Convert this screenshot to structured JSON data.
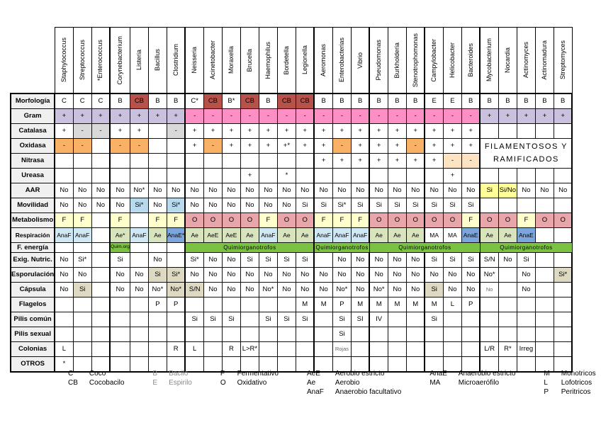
{
  "table": {
    "columns": [
      "Staphylococcus",
      "Streptococcus",
      "*Enterococcus",
      "Corynebacterium",
      "Listeria",
      "Bacillus",
      "Clostridium",
      "Neisseria",
      "Acinetobacter",
      "Moraxella",
      "Brucella",
      "Haemophilus",
      "Bordetella",
      "Legionella",
      "Aeromonas",
      "Enterobacterias",
      "Vibrio",
      "Pseudomonas",
      "Burkholderia",
      "Stenotrophomonas",
      "Campylobacter",
      "Helicobacter",
      "Bacteroides",
      "Mycobacterium",
      "Nocardia",
      "Actinomyces",
      "Actinomadura",
      "Streptomyces"
    ],
    "rows": [
      {
        "label": "Morfología",
        "cells": [
          "C",
          "C",
          "C",
          "B",
          {
            "v": "CB",
            "k": "brick"
          },
          "B",
          "B",
          "C*",
          {
            "v": "CB",
            "k": "brick"
          },
          "B*",
          {
            "v": "CB",
            "k": "brick"
          },
          "B",
          {
            "v": "CB",
            "k": "brick"
          },
          {
            "v": "CB",
            "k": "brick"
          },
          "B",
          "B",
          "B",
          "B",
          "B",
          "B",
          "E",
          "E",
          "B",
          "B",
          "B",
          "B",
          "B",
          "B"
        ]
      },
      {
        "label": "Gram",
        "cells": [
          {
            "v": "+",
            "k": "purple"
          },
          {
            "v": "+",
            "k": "purple"
          },
          {
            "v": "+",
            "k": "purple"
          },
          {
            "v": "+",
            "k": "purple"
          },
          {
            "v": "+",
            "k": "purple"
          },
          {
            "v": "+",
            "k": "purple"
          },
          {
            "v": "+",
            "k": "purple"
          },
          {
            "v": "-",
            "k": "pink"
          },
          {
            "v": "-",
            "k": "pink"
          },
          {
            "v": "-",
            "k": "pink"
          },
          {
            "v": "-",
            "k": "pink"
          },
          {
            "v": "-",
            "k": "pink"
          },
          {
            "v": "-",
            "k": "pink"
          },
          {
            "v": "-",
            "k": "pink"
          },
          {
            "v": "-",
            "k": "pink"
          },
          {
            "v": "-",
            "k": "pink"
          },
          {
            "v": "-",
            "k": "pink"
          },
          {
            "v": "-",
            "k": "pink"
          },
          {
            "v": "-",
            "k": "pink"
          },
          {
            "v": "-",
            "k": "pink"
          },
          {
            "v": "-",
            "k": "pink"
          },
          {
            "v": "-",
            "k": "pink"
          },
          {
            "v": "-",
            "k": "pink"
          },
          {
            "v": "+",
            "k": "purple"
          },
          {
            "v": "+",
            "k": "purple"
          },
          {
            "v": "+",
            "k": "purple"
          },
          {
            "v": "+",
            "k": "purple"
          },
          {
            "v": "+",
            "k": "purple"
          }
        ]
      },
      {
        "label": "Catalasa",
        "cells": [
          "+",
          {
            "v": "-",
            "k": "gray"
          },
          {
            "v": "-",
            "k": "gray"
          },
          "+",
          "+",
          "",
          {
            "v": "-",
            "k": "gray"
          },
          "+",
          "+",
          "+",
          "+",
          "+",
          "+",
          "+",
          "+",
          "+",
          "+",
          "+",
          "+",
          "+",
          "+",
          "+",
          "+",
          "",
          "",
          "",
          "",
          ""
        ]
      },
      {
        "label": "Oxidasa",
        "cells": [
          {
            "v": "-",
            "k": "orange"
          },
          {
            "v": "-",
            "k": "orange"
          },
          "",
          {
            "v": "-",
            "k": "orange"
          },
          {
            "v": "-",
            "k": "orange"
          },
          "",
          "",
          "+",
          {
            "v": "-",
            "k": "orange"
          },
          "+",
          "+",
          "+",
          "+*",
          "+",
          "+",
          {
            "v": "-",
            "k": "orange"
          },
          "+",
          "+",
          "+",
          {
            "v": "-",
            "k": "orange"
          },
          "+",
          "+",
          "+",
          {
            "v": "FILAMENTOSOS Y RAMIFICADOS",
            "k": "fil",
            "cs": 5,
            "rs": 2
          }
        ]
      },
      {
        "label": "Nitrasa",
        "cells": [
          "",
          "",
          "",
          "",
          "",
          "",
          "",
          "",
          "",
          "",
          "",
          "",
          "",
          "",
          "+",
          "+",
          "+",
          "+",
          "+",
          "+",
          "+",
          {
            "v": "-",
            "k": "lorange"
          },
          {
            "v": "-",
            "k": "lorange"
          },
          null,
          null,
          null,
          null,
          null
        ]
      },
      {
        "label": "Ureasa",
        "cells": [
          "",
          "",
          "",
          "",
          "",
          "",
          "",
          "",
          "",
          "",
          "+",
          "",
          "*",
          "",
          "",
          "",
          "",
          "",
          "",
          "",
          "",
          "+",
          "",
          "",
          "",
          "",
          "",
          ""
        ]
      },
      {
        "label": "AAR",
        "cells": [
          "No",
          "No",
          "No",
          "No",
          "No*",
          "No",
          "No",
          "No",
          "No",
          "No",
          "No",
          "No",
          "No",
          "No",
          "No",
          "No",
          "No",
          "No",
          "No",
          "No",
          "No",
          "No",
          "No",
          {
            "v": "Si",
            "k": "yellow"
          },
          {
            "v": "Si/No",
            "k": "yellow"
          },
          "No",
          "No",
          "No"
        ]
      },
      {
        "label": "Movilidad",
        "cells": [
          "No",
          "No",
          "No",
          "No",
          {
            "v": "Si*",
            "k": "blue"
          },
          "No",
          {
            "v": "Si*",
            "k": "blue"
          },
          "No",
          "No",
          "No",
          "No",
          "No",
          "No",
          "Si",
          "Si",
          "Si*",
          "Si",
          "Si",
          "Si",
          "Si",
          "Si",
          "Si",
          "Si",
          "",
          "",
          "",
          "",
          ""
        ]
      },
      {
        "label": "Metabolismo",
        "cells": [
          {
            "v": "F",
            "k": "fy"
          },
          {
            "v": "F",
            "k": "fy"
          },
          "",
          {
            "v": "F",
            "k": "fy"
          },
          "",
          {
            "v": "F",
            "k": "fy"
          },
          {
            "v": "F",
            "k": "fy"
          },
          {
            "v": "O",
            "k": "rose"
          },
          {
            "v": "O",
            "k": "rose"
          },
          {
            "v": "O",
            "k": "rose"
          },
          {
            "v": "O",
            "k": "rose"
          },
          {
            "v": "F",
            "k": "fy"
          },
          {
            "v": "O",
            "k": "rose"
          },
          {
            "v": "O",
            "k": "rose"
          },
          {
            "v": "F",
            "k": "fy"
          },
          {
            "v": "F",
            "k": "fy"
          },
          {
            "v": "F",
            "k": "fy"
          },
          {
            "v": "O",
            "k": "rose"
          },
          {
            "v": "O",
            "k": "rose"
          },
          {
            "v": "O",
            "k": "rose"
          },
          {
            "v": "O",
            "k": "rose"
          },
          {
            "v": "O",
            "k": "rose"
          },
          {
            "v": "F",
            "k": "fy"
          },
          {
            "v": "O",
            "k": "rose"
          },
          {
            "v": "O",
            "k": "rose"
          },
          {
            "v": "F",
            "k": "fy"
          },
          {
            "v": "O",
            "k": "rose"
          },
          {
            "v": "O",
            "k": "rose"
          }
        ]
      },
      {
        "label": "Respiración",
        "cells": [
          {
            "v": "AnaF",
            "k": "lblue"
          },
          {
            "v": "AnaF",
            "k": "lblue"
          },
          "",
          {
            "v": "Ae*",
            "k": "lgreen"
          },
          {
            "v": "AnaF",
            "k": "lblue"
          },
          {
            "v": "Ae",
            "k": "lgreen"
          },
          {
            "v": "AnaE*",
            "k": "dblue"
          },
          {
            "v": "Ae",
            "k": "lgreen"
          },
          {
            "v": "AeE",
            "k": "lgreen"
          },
          {
            "v": "AeE",
            "k": "lgreen"
          },
          {
            "v": "Ae",
            "k": "lgreen"
          },
          {
            "v": "AnaF",
            "k": "lblue"
          },
          {
            "v": "Ae",
            "k": "lgreen"
          },
          {
            "v": "Ae",
            "k": "lgreen"
          },
          {
            "v": "AnaF",
            "k": "lblue"
          },
          {
            "v": "AnaF",
            "k": "lblue"
          },
          {
            "v": "AnaF",
            "k": "lblue"
          },
          {
            "v": "Ae",
            "k": "lgreen"
          },
          {
            "v": "Ae",
            "k": "lgreen"
          },
          {
            "v": "Ae",
            "k": "lgreen"
          },
          "MA",
          "MA",
          {
            "v": "AnaE",
            "k": "dblue"
          },
          {
            "v": "Ae",
            "k": "lgreen"
          },
          {
            "v": "Ae",
            "k": "lgreen"
          },
          {
            "v": "AnaE",
            "k": "dblue"
          },
          "",
          ""
        ]
      },
      {
        "label": "F. energía",
        "cells": [
          "",
          "",
          "",
          {
            "v": "Quim.org",
            "k": "green xs"
          },
          "",
          "",
          "",
          {
            "v": "Quimiorganotrofos",
            "k": "green",
            "cs": 7
          },
          null,
          null,
          null,
          null,
          null,
          null,
          {
            "v": "Quimiorganotrofos",
            "k": "green",
            "cs": 3
          },
          null,
          null,
          {
            "v": "Quimiorganotrofos",
            "k": "green",
            "cs": 6
          },
          null,
          null,
          null,
          null,
          null,
          {
            "v": "Quimiorganotrofos",
            "k": "green",
            "cs": 5
          },
          null,
          null,
          null,
          null
        ]
      },
      {
        "label": "Exig. Nutric.",
        "cells": [
          "No",
          "Si*",
          "",
          "Si",
          "",
          "No",
          "",
          "Si*",
          "No",
          "No",
          "Si",
          "Si",
          "Si",
          "Si",
          "",
          "No",
          "No",
          "No",
          "No",
          "No",
          "Si",
          "Si",
          "Si",
          "S/N",
          "No",
          "Si",
          "",
          ""
        ]
      },
      {
        "label": "Esporulación",
        "cells": [
          "No",
          "No",
          "",
          "No",
          "No",
          {
            "v": "Si",
            "k": "tan"
          },
          {
            "v": "Si*",
            "k": "tan"
          },
          "No",
          "No",
          "No",
          "No",
          "No",
          "No",
          "No",
          "No",
          "No",
          "No",
          "No",
          "No",
          "No",
          "No",
          "No",
          "No",
          "No*",
          "",
          "No",
          "",
          {
            "v": "Si*",
            "k": "tan"
          }
        ]
      },
      {
        "label": "Cápsula",
        "cells": [
          "No",
          {
            "v": "Si",
            "k": "tan"
          },
          "",
          "No",
          "No",
          "No*",
          {
            "v": "No*",
            "k": "tan"
          },
          {
            "v": "S/N",
            "k": "tan"
          },
          "No",
          "No",
          "No",
          "No*",
          "No",
          "No",
          "No",
          "No*",
          "No",
          "No*",
          "No",
          "No",
          {
            "v": "Si",
            "k": "tan"
          },
          "No",
          "No",
          {
            "v": "No",
            "k": "sm"
          },
          "",
          "No",
          "",
          ""
        ]
      },
      {
        "label": "Flagelos",
        "cells": [
          "",
          "",
          "",
          "",
          "",
          "P",
          "P",
          "",
          "",
          "",
          "",
          "",
          "",
          "M",
          "M",
          "P",
          "M",
          "M",
          "M",
          "M",
          "M",
          "L",
          "P",
          "",
          "",
          "",
          "",
          ""
        ]
      },
      {
        "label": "Pilis común",
        "cells": [
          "",
          "",
          "",
          "",
          "",
          "",
          "",
          "Si",
          "Si",
          "Si",
          "",
          "Si",
          "Si",
          "Si",
          "",
          "Si",
          "SI",
          "IV",
          "",
          "",
          "Si",
          "",
          "",
          "",
          "",
          "",
          "",
          ""
        ]
      },
      {
        "label": "Pilis sexual",
        "cells": [
          "",
          "",
          "",
          "",
          "",
          "",
          "",
          "",
          "",
          "",
          "",
          "",
          "",
          "",
          "",
          "Si",
          "",
          "",
          "",
          "",
          "",
          "",
          "",
          "",
          "",
          "",
          "",
          ""
        ]
      },
      {
        "label": "Colonias",
        "cells": [
          "L",
          "",
          "",
          "",
          "",
          "",
          "R",
          "L",
          "",
          "R",
          "L>R*",
          "",
          "",
          "",
          "",
          {
            "v": "Rojas",
            "k": "sm"
          },
          "",
          "",
          "",
          "",
          "",
          "",
          "",
          "L/R",
          "R*",
          "Irreg",
          "",
          ""
        ]
      },
      {
        "label": "OTROS",
        "cells": [
          "*",
          "",
          "",
          "",
          "",
          "",
          "",
          "",
          "",
          "",
          "",
          "",
          "",
          "",
          "",
          "",
          "",
          "",
          "",
          "",
          "",
          "",
          "",
          "",
          "",
          "",
          "",
          ""
        ]
      }
    ]
  },
  "legend": [
    {
      "items": [
        [
          "C",
          "Coco"
        ],
        [
          "CB",
          "Cocobacilo"
        ]
      ]
    },
    {
      "gray": true,
      "items": [
        [
          "B",
          "Bacilo"
        ],
        [
          "E",
          "Espirilo"
        ]
      ]
    },
    {
      "items": [
        [
          "F",
          "Fermentativo"
        ],
        [
          "O",
          "Oxidativo"
        ]
      ]
    },
    {
      "items": [
        [
          "AeE",
          "Aerobio estricto"
        ],
        [
          "Ae",
          "Aerobio"
        ],
        [
          "AnaF",
          "Anaerobio facultativo"
        ]
      ]
    },
    {
      "items": [
        [
          "AnaE",
          "Anaerobio estricto"
        ],
        [
          "MA",
          "Microaerófilo"
        ]
      ]
    },
    {
      "items": [
        [
          "M",
          "Monotricos"
        ],
        [
          "L",
          "Lofotricos"
        ],
        [
          "P",
          "Peritricos"
        ]
      ]
    }
  ]
}
